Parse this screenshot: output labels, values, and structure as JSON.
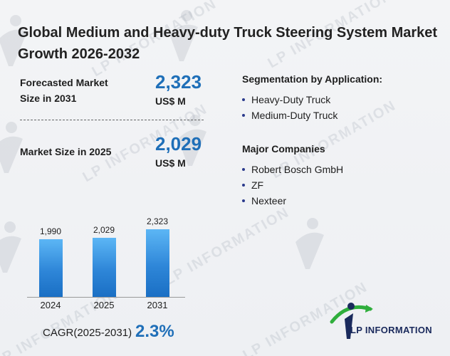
{
  "title": "Global Medium and Heavy-duty Truck Steering System Market Growth 2026-2032",
  "kpis": {
    "forecast_label": "Forecasted Market Size in 2031",
    "forecast_value": "2,323",
    "forecast_unit": "US$ M",
    "current_label": "Market Size in 2025",
    "current_value": "2,029",
    "current_unit": "US$ M"
  },
  "segmentation": {
    "title": "Segmentation by Application:",
    "items": [
      "Heavy-Duty Truck",
      "Medium-Duty Truck"
    ]
  },
  "companies": {
    "title": "Major Companies",
    "items": [
      "Robert Bosch GmbH",
      "ZF",
      "Nexteer"
    ]
  },
  "chart_data": {
    "type": "bar",
    "categories": [
      "2024",
      "2025",
      "2031"
    ],
    "values": [
      1990,
      2029,
      2323
    ],
    "value_labels": [
      "1,990",
      "2,029",
      "2,323"
    ],
    "ylim": [
      0,
      2450
    ],
    "grid": false,
    "colors": {
      "bar_top": "#5cb6f5",
      "bar_bottom": "#1a6fc4"
    }
  },
  "cagr": {
    "label": "CAGR(2025-2031)",
    "value": "2.3%"
  },
  "brand": {
    "name": "LP INFORMATION",
    "watermark": "LP INFORMATION"
  },
  "colors": {
    "accent": "#1f6fb8",
    "brand_green": "#2fae3c",
    "brand_navy": "#1a2a5c"
  }
}
